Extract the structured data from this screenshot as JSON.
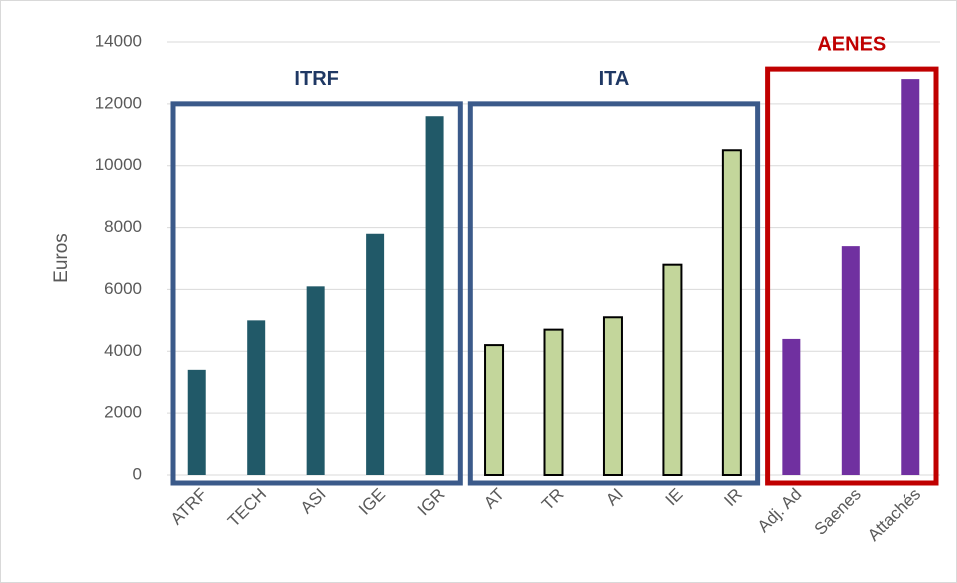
{
  "chart_data": {
    "type": "bar",
    "y_label": "Euros",
    "categories": [
      "ATRF",
      "TECH",
      "ASI",
      "IGE",
      "IGR",
      "AT",
      "TR",
      "AI",
      "IE",
      "IR",
      "Adj. Ad",
      "Saenes",
      "Attachés"
    ],
    "series": [
      {
        "name": "ITRF",
        "color": "#215968",
        "box_color": "#3b5a8a",
        "label_color": "#1f3864",
        "values": [
          3400,
          5000,
          6100,
          7800,
          11600,
          null,
          null,
          null,
          null,
          null,
          null,
          null,
          null
        ]
      },
      {
        "name": "ITA",
        "color": "#c3d69b",
        "edge_color": "#000000",
        "box_color": "#3b5a8a",
        "label_color": "#1f3864",
        "values": [
          null,
          null,
          null,
          null,
          null,
          4200,
          4700,
          5100,
          6800,
          10500,
          null,
          null,
          null
        ]
      },
      {
        "name": "AENES",
        "color": "#7030a0",
        "box_color": "#c00000",
        "label_color": "#c00000",
        "values": [
          null,
          null,
          null,
          null,
          null,
          null,
          null,
          null,
          null,
          null,
          4400,
          7400,
          12800
        ]
      }
    ],
    "ylim": [
      0,
      14000
    ],
    "yticks": [
      0,
      2000,
      4000,
      6000,
      8000,
      10000,
      12000,
      14000
    ],
    "grid": true
  }
}
